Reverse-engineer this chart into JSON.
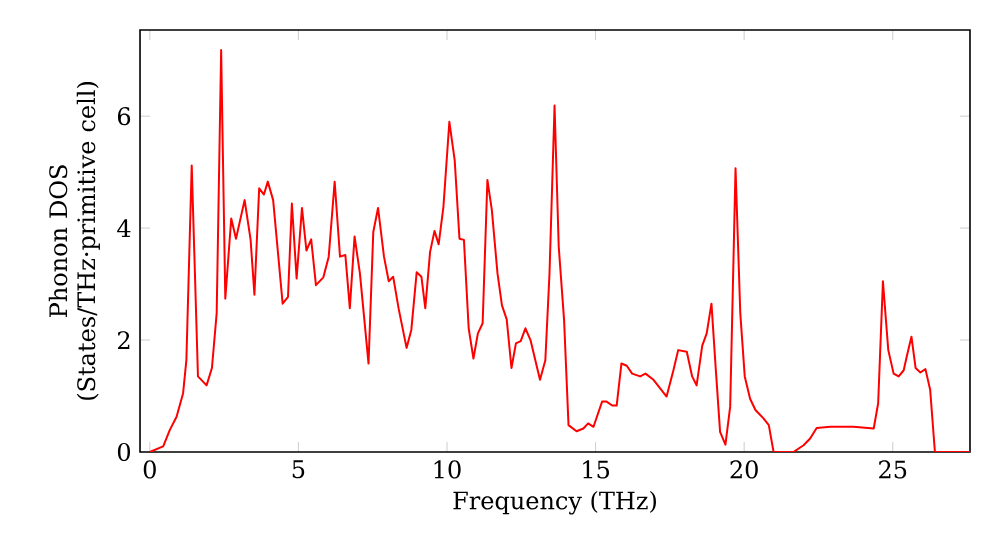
{
  "chart_data": {
    "type": "line",
    "xlabel": "Frequency (THz)",
    "ylabel": "Phonon DOS (States/THz·primitive cell)",
    "color": "#ff0000",
    "xlim": [
      -0.33,
      27.6
    ],
    "ylim": [
      0,
      7.54
    ],
    "xticks": [
      0,
      5,
      10,
      15,
      20,
      25
    ],
    "yticks": [
      0,
      2,
      4,
      6
    ],
    "x": [
      0,
      0.45,
      0.67,
      0.9,
      1.12,
      1.23,
      1.41,
      1.62,
      1.91,
      2.09,
      2.25,
      2.4,
      2.54,
      2.74,
      2.9,
      3.19,
      3.39,
      3.52,
      3.68,
      3.84,
      3.97,
      4.15,
      4.47,
      4.65,
      4.78,
      4.94,
      5.12,
      5.27,
      5.43,
      5.59,
      5.84,
      6.02,
      6.22,
      6.4,
      6.58,
      6.73,
      6.89,
      7.07,
      7.36,
      7.52,
      7.68,
      7.88,
      8.04,
      8.19,
      8.37,
      8.64,
      8.8,
      8.98,
      9.14,
      9.27,
      9.43,
      9.58,
      9.72,
      9.88,
      10.08,
      10.26,
      10.42,
      10.57,
      10.73,
      10.89,
      11.04,
      11.2,
      11.36,
      11.51,
      11.7,
      11.85,
      12.01,
      12.17,
      12.32,
      12.48,
      12.64,
      12.81,
      13.13,
      13.31,
      13.45,
      13.62,
      13.76,
      13.94,
      14.09,
      14.36,
      14.59,
      14.75,
      14.93,
      15.22,
      15.37,
      15.56,
      15.71,
      15.87,
      16.05,
      16.23,
      16.5,
      16.68,
      16.95,
      17.39,
      17.62,
      17.78,
      18.07,
      18.25,
      18.4,
      18.59,
      18.74,
      18.9,
      19.04,
      19.19,
      19.37,
      19.53,
      19.71,
      19.87,
      20.02,
      20.2,
      20.38,
      20.65,
      20.83,
      20.99,
      21.66,
      22.0,
      22.22,
      22.44,
      22.9,
      23.68,
      24.36,
      24.51,
      24.67,
      24.85,
      25.03,
      25.2,
      25.37,
      25.47,
      25.63,
      25.77,
      25.93,
      26.1,
      26.26,
      26.42,
      27.6
    ],
    "values": [
      0,
      0.1,
      0.39,
      0.63,
      1.05,
      1.64,
      5.12,
      1.35,
      1.19,
      1.5,
      2.48,
      7.18,
      2.74,
      4.17,
      3.81,
      4.5,
      3.8,
      2.81,
      4.71,
      4.6,
      4.83,
      4.5,
      2.65,
      2.77,
      4.44,
      3.1,
      4.36,
      3.6,
      3.8,
      2.98,
      3.12,
      3.49,
      4.83,
      3.49,
      3.52,
      2.57,
      3.85,
      3.19,
      1.58,
      3.93,
      4.36,
      3.49,
      3.05,
      3.13,
      2.57,
      1.86,
      2.18,
      3.21,
      3.13,
      2.57,
      3.57,
      3.95,
      3.71,
      4.38,
      5.9,
      5.21,
      3.81,
      3.79,
      2.21,
      1.67,
      2.12,
      2.3,
      4.86,
      4.32,
      3.19,
      2.62,
      2.37,
      1.5,
      1.94,
      1.98,
      2.21,
      2.0,
      1.29,
      1.64,
      3.19,
      6.19,
      3.67,
      2.36,
      0.48,
      0.37,
      0.42,
      0.51,
      0.45,
      0.9,
      0.9,
      0.83,
      0.83,
      1.58,
      1.54,
      1.4,
      1.35,
      1.4,
      1.29,
      0.99,
      1.46,
      1.82,
      1.79,
      1.35,
      1.19,
      1.9,
      2.12,
      2.65,
      1.52,
      0.36,
      0.13,
      0.81,
      5.07,
      2.48,
      1.35,
      0.95,
      0.75,
      0.6,
      0.48,
      0,
      0,
      0.12,
      0.24,
      0.43,
      0.45,
      0.45,
      0.42,
      0.87,
      3.05,
      1.82,
      1.4,
      1.35,
      1.46,
      1.7,
      2.06,
      1.5,
      1.42,
      1.48,
      1.11,
      0,
      0
    ]
  }
}
